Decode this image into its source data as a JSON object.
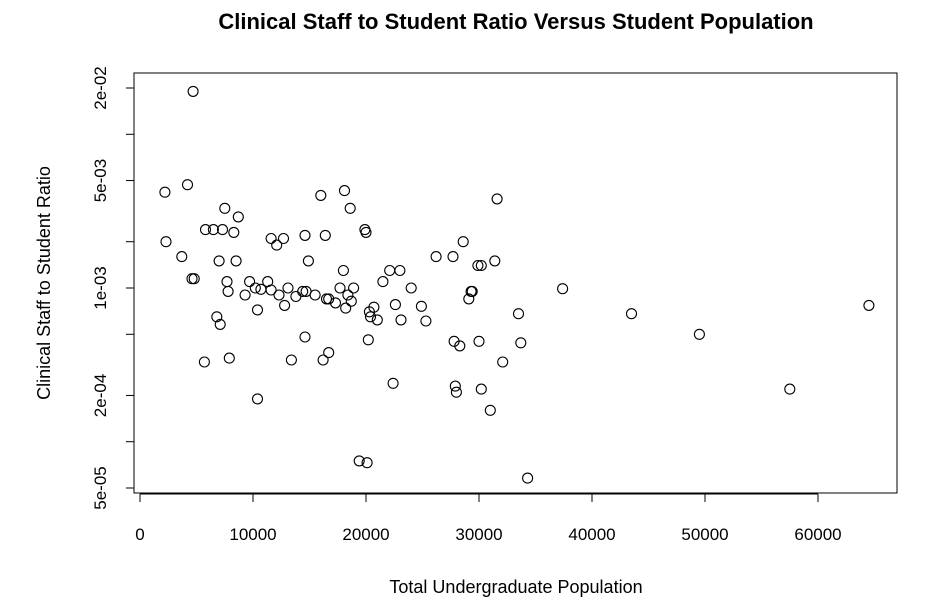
{
  "chart_data": {
    "type": "scatter",
    "title": "Clinical Staff to Student Ratio Versus Student Population",
    "xlabel": "Total Undergraduate Population",
    "ylabel": "Clinical Staff to Student Ratio",
    "xlim": [
      0,
      65000
    ],
    "ylim": [
      5e-05,
      0.02
    ],
    "y_scale": "log",
    "x_ticks": [
      0,
      10000,
      20000,
      30000,
      40000,
      50000,
      60000
    ],
    "x_tick_labels": [
      "0",
      "10000",
      "20000",
      "30000",
      "40000",
      "50000",
      "60000"
    ],
    "y_ticks": [
      5e-05,
      0.0002,
      0.001,
      0.005,
      0.02
    ],
    "y_tick_labels": [
      "5e-05",
      "2e-04",
      "1e-03",
      "5e-03",
      "2e-02"
    ],
    "y_minor_ticks": [
      0.0001,
      0.0005,
      0.002,
      0.01
    ],
    "grid": false,
    "points": [
      [
        4700,
        0.019
      ],
      [
        2200,
        0.0042
      ],
      [
        4200,
        0.0047
      ],
      [
        5700,
        0.00033
      ],
      [
        2300,
        0.002
      ],
      [
        3700,
        0.0016
      ],
      [
        4600,
        0.00115
      ],
      [
        4800,
        0.00115
      ],
      [
        5800,
        0.0024
      ],
      [
        6500,
        0.0024
      ],
      [
        7000,
        0.0015
      ],
      [
        7300,
        0.0024
      ],
      [
        7500,
        0.0033
      ],
      [
        7700,
        0.0011
      ],
      [
        7800,
        0.00095
      ],
      [
        7900,
        0.00035
      ],
      [
        8300,
        0.0023
      ],
      [
        8500,
        0.0015
      ],
      [
        8700,
        0.0029
      ],
      [
        6800,
        0.00065
      ],
      [
        7100,
        0.00058
      ],
      [
        9300,
        0.0009
      ],
      [
        9700,
        0.0011
      ],
      [
        10200,
        0.001
      ],
      [
        10400,
        0.00072
      ],
      [
        10400,
        0.00019
      ],
      [
        10700,
        0.00098
      ],
      [
        11300,
        0.0011
      ],
      [
        11600,
        0.00097
      ],
      [
        11600,
        0.0021
      ],
      [
        12100,
        0.0019
      ],
      [
        12300,
        0.0009
      ],
      [
        12700,
        0.0021
      ],
      [
        12800,
        0.00077
      ],
      [
        13100,
        0.001
      ],
      [
        13400,
        0.00034
      ],
      [
        13800,
        0.00088
      ],
      [
        14400,
        0.00095
      ],
      [
        14600,
        0.0022
      ],
      [
        14700,
        0.00095
      ],
      [
        14900,
        0.0015
      ],
      [
        15500,
        0.0009
      ],
      [
        16000,
        0.004
      ],
      [
        16200,
        0.00034
      ],
      [
        16400,
        0.0022
      ],
      [
        16500,
        0.00085
      ],
      [
        16700,
        0.00085
      ],
      [
        16700,
        0.00038
      ],
      [
        17300,
        0.0008
      ],
      [
        17700,
        0.001
      ],
      [
        18000,
        0.0013
      ],
      [
        18100,
        0.0043
      ],
      [
        18200,
        0.00074
      ],
      [
        18400,
        0.0009
      ],
      [
        18600,
        0.0033
      ],
      [
        18700,
        0.00082
      ],
      [
        18900,
        0.001
      ],
      [
        14600,
        0.00048
      ],
      [
        19400,
        7.5e-05
      ],
      [
        19900,
        0.0024
      ],
      [
        20000,
        0.0023
      ],
      [
        20100,
        7.3e-05
      ],
      [
        20200,
        0.00046
      ],
      [
        20300,
        0.0007
      ],
      [
        20400,
        0.00065
      ],
      [
        20700,
        0.00075
      ],
      [
        21000,
        0.00062
      ],
      [
        21500,
        0.0011
      ],
      [
        22100,
        0.0013
      ],
      [
        22400,
        0.00024
      ],
      [
        22600,
        0.00078
      ],
      [
        23000,
        0.0013
      ],
      [
        23100,
        0.00062
      ],
      [
        24000,
        0.001
      ],
      [
        24900,
        0.00076
      ],
      [
        25300,
        0.00061
      ],
      [
        26200,
        0.0016
      ],
      [
        27700,
        0.0016
      ],
      [
        27800,
        0.00045
      ],
      [
        27900,
        0.00023
      ],
      [
        28000,
        0.00021
      ],
      [
        28300,
        0.00042
      ],
      [
        28600,
        0.002
      ],
      [
        29100,
        0.00085
      ],
      [
        29300,
        0.00095
      ],
      [
        29400,
        0.00095
      ],
      [
        29900,
        0.0014
      ],
      [
        30000,
        0.00045
      ],
      [
        30200,
        0.0014
      ],
      [
        30200,
        0.00022
      ],
      [
        31000,
        0.00016
      ],
      [
        31400,
        0.0015
      ],
      [
        31600,
        0.0038
      ],
      [
        32100,
        0.00033
      ],
      [
        33500,
        0.00068
      ],
      [
        33700,
        0.00044
      ],
      [
        34300,
        5.8e-05
      ],
      [
        37400,
        0.00099
      ],
      [
        43500,
        0.00068
      ],
      [
        49500,
        0.0005
      ],
      [
        57500,
        0.00022
      ],
      [
        64500,
        0.00077
      ]
    ]
  }
}
